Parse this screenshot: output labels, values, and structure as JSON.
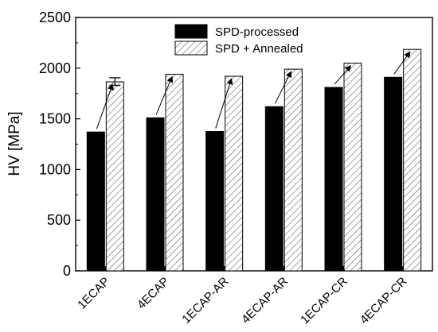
{
  "chart_data": {
    "type": "bar",
    "categories": [
      "1ECAP",
      "4ECAP",
      "1ECAP-AR",
      "4ECAP-AR",
      "1ECAP-CR",
      "4ECAP-CR"
    ],
    "series": [
      {
        "name": "SPD-processed",
        "values": [
          1370,
          1510,
          1375,
          1620,
          1810,
          1910
        ],
        "color": "#000000",
        "pattern": "solid"
      },
      {
        "name": "SPD + Annealed",
        "values": [
          1865,
          1940,
          1920,
          1990,
          2050,
          2185
        ],
        "color": "#ffffff",
        "pattern": "diagonal-hatch"
      }
    ],
    "error_bars": [
      {
        "series": "SPD + Annealed",
        "category": "1ECAP",
        "low": 1830,
        "high": 1905
      }
    ],
    "annotations": "arrows from each SPD-processed bar top to the SPD + Annealed bar top",
    "title": "",
    "xlabel": "",
    "ylabel": "HV [MPa]",
    "ylim": [
      0,
      2500
    ],
    "yticks": [
      0,
      500,
      1000,
      1500,
      2000,
      2500
    ],
    "grid": false,
    "legend_position": "top-right"
  }
}
